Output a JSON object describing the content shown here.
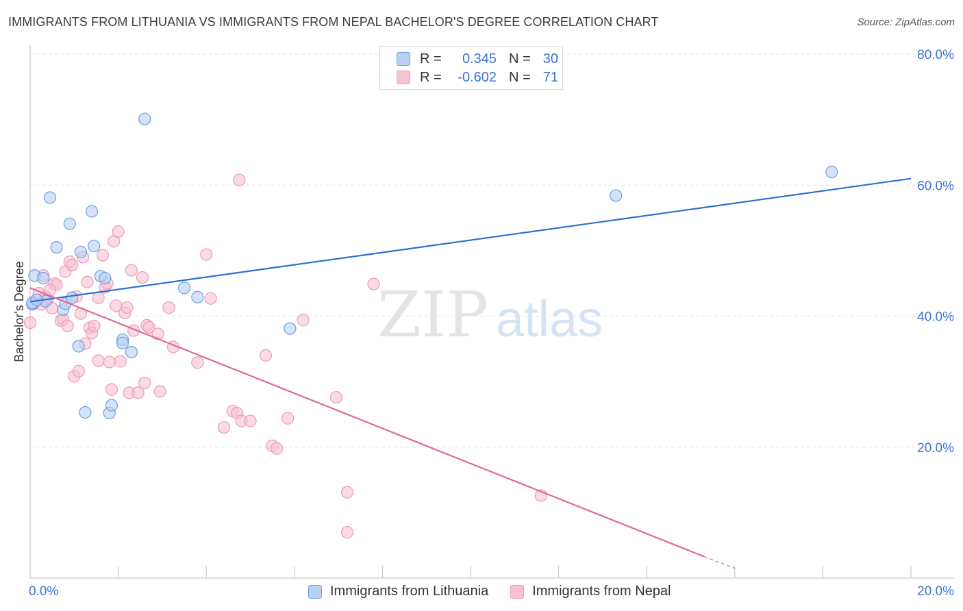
{
  "title": "IMMIGRANTS FROM LITHUANIA VS IMMIGRANTS FROM NEPAL BACHELOR'S DEGREE CORRELATION CHART",
  "source": "Source: ZipAtlas.com",
  "watermark": {
    "zip": "ZIP",
    "atlas": "atlas"
  },
  "legend": {
    "rows": [
      {
        "r_label": "R =",
        "r_value": "0.345",
        "n_label": "N =",
        "n_value": "30"
      },
      {
        "r_label": "R =",
        "r_value": "-0.602",
        "n_label": "N =",
        "n_value": "71"
      }
    ]
  },
  "colors": {
    "lithuania_fill": "#b8d1f3",
    "lithuania_stroke": "#6a9ee0",
    "lithuania_line": "#2d6fcf",
    "nepal_fill": "#f7c3d3",
    "nepal_stroke": "#ec9ab4",
    "nepal_line": "#e0679a",
    "axis_label": "#3a74d0",
    "grid": "#e2e2e2"
  },
  "chart_data": {
    "type": "scatter",
    "xlabel": "",
    "ylabel": "Bachelor's Degree",
    "xlim": [
      0,
      20
    ],
    "ylim": [
      0,
      80
    ],
    "x_tick_labels": [
      "0.0%",
      "20.0%"
    ],
    "y_tick_labels": [
      "20.0%",
      "40.0%",
      "60.0%",
      "80.0%"
    ],
    "y_ticks": [
      20,
      40,
      60,
      80
    ],
    "x_minor_ticks": [
      0,
      2,
      4,
      6,
      8,
      10,
      12,
      14,
      16,
      18,
      20
    ],
    "grid": true,
    "series": [
      {
        "name": "Immigrants from Lithuania",
        "r": 0.345,
        "n": 30,
        "trend": {
          "x0": 0,
          "y0": 42.2,
          "x1": 20,
          "y1": 61.0
        },
        "points": [
          [
            0.05,
            41.8
          ],
          [
            0.1,
            46.2
          ],
          [
            0.3,
            45.8
          ],
          [
            0.35,
            42.3
          ],
          [
            0.45,
            58.1
          ],
          [
            0.6,
            50.5
          ],
          [
            0.75,
            41.0
          ],
          [
            0.8,
            41.9
          ],
          [
            0.9,
            54.1
          ],
          [
            0.95,
            42.8
          ],
          [
            1.1,
            35.4
          ],
          [
            1.15,
            49.8
          ],
          [
            1.25,
            25.3
          ],
          [
            1.4,
            56.0
          ],
          [
            1.45,
            50.7
          ],
          [
            1.6,
            46.1
          ],
          [
            1.7,
            45.8
          ],
          [
            1.8,
            25.2
          ],
          [
            1.85,
            26.4
          ],
          [
            2.1,
            36.4
          ],
          [
            2.1,
            35.9
          ],
          [
            2.3,
            34.5
          ],
          [
            2.6,
            70.1
          ],
          [
            3.5,
            44.3
          ],
          [
            3.8,
            42.9
          ],
          [
            5.9,
            38.1
          ],
          [
            13.3,
            58.4
          ],
          [
            18.2,
            62.0
          ],
          [
            0.05,
            42.0
          ],
          [
            0.15,
            42.5
          ]
        ]
      },
      {
        "name": "Immigrants from Nepal",
        "r": -0.602,
        "n": 71,
        "trend": {
          "x0": 0,
          "y0": 44.3,
          "x1": 15.3,
          "y1": 3.3
        },
        "trend_dash": {
          "x0": 15.3,
          "y0": 3.3,
          "x1": 16.0,
          "y1": 1.5
        },
        "points": [
          [
            0.0,
            39.0
          ],
          [
            0.1,
            42.0
          ],
          [
            0.2,
            43.5
          ],
          [
            0.3,
            46.2
          ],
          [
            0.35,
            43.0
          ],
          [
            0.4,
            42.6
          ],
          [
            0.5,
            41.2
          ],
          [
            0.55,
            45.0
          ],
          [
            0.6,
            44.8
          ],
          [
            0.7,
            39.3
          ],
          [
            0.75,
            39.5
          ],
          [
            0.8,
            46.8
          ],
          [
            0.85,
            38.5
          ],
          [
            0.9,
            48.3
          ],
          [
            0.95,
            47.8
          ],
          [
            1.0,
            30.8
          ],
          [
            1.05,
            43.0
          ],
          [
            1.1,
            31.6
          ],
          [
            1.15,
            40.4
          ],
          [
            1.2,
            49.0
          ],
          [
            1.25,
            35.8
          ],
          [
            1.3,
            45.2
          ],
          [
            1.35,
            38.2
          ],
          [
            1.4,
            37.4
          ],
          [
            1.45,
            38.5
          ],
          [
            1.55,
            42.8
          ],
          [
            1.55,
            33.2
          ],
          [
            1.65,
            49.3
          ],
          [
            1.7,
            44.4
          ],
          [
            1.75,
            45.0
          ],
          [
            1.8,
            33.0
          ],
          [
            1.85,
            28.8
          ],
          [
            1.9,
            51.4
          ],
          [
            1.95,
            41.6
          ],
          [
            2.0,
            52.9
          ],
          [
            2.05,
            33.1
          ],
          [
            2.15,
            40.5
          ],
          [
            2.2,
            41.3
          ],
          [
            2.25,
            28.3
          ],
          [
            2.3,
            47.0
          ],
          [
            2.35,
            37.8
          ],
          [
            2.45,
            28.3
          ],
          [
            2.55,
            45.9
          ],
          [
            2.6,
            29.8
          ],
          [
            2.65,
            38.6
          ],
          [
            2.7,
            38.3
          ],
          [
            2.9,
            37.3
          ],
          [
            2.95,
            28.5
          ],
          [
            3.15,
            41.3
          ],
          [
            3.25,
            35.3
          ],
          [
            3.8,
            32.9
          ],
          [
            4.1,
            42.7
          ],
          [
            4.0,
            49.4
          ],
          [
            4.4,
            23.0
          ],
          [
            4.6,
            25.5
          ],
          [
            4.7,
            25.2
          ],
          [
            4.75,
            60.8
          ],
          [
            4.8,
            24.0
          ],
          [
            5.0,
            24.0
          ],
          [
            5.35,
            34.0
          ],
          [
            5.5,
            20.2
          ],
          [
            5.6,
            19.8
          ],
          [
            5.85,
            24.4
          ],
          [
            6.2,
            39.4
          ],
          [
            6.95,
            27.6
          ],
          [
            7.2,
            13.1
          ],
          [
            7.2,
            7.0
          ],
          [
            7.8,
            44.9
          ],
          [
            11.6,
            12.6
          ],
          [
            0.45,
            44.0
          ],
          [
            0.25,
            41.8
          ]
        ]
      }
    ]
  }
}
